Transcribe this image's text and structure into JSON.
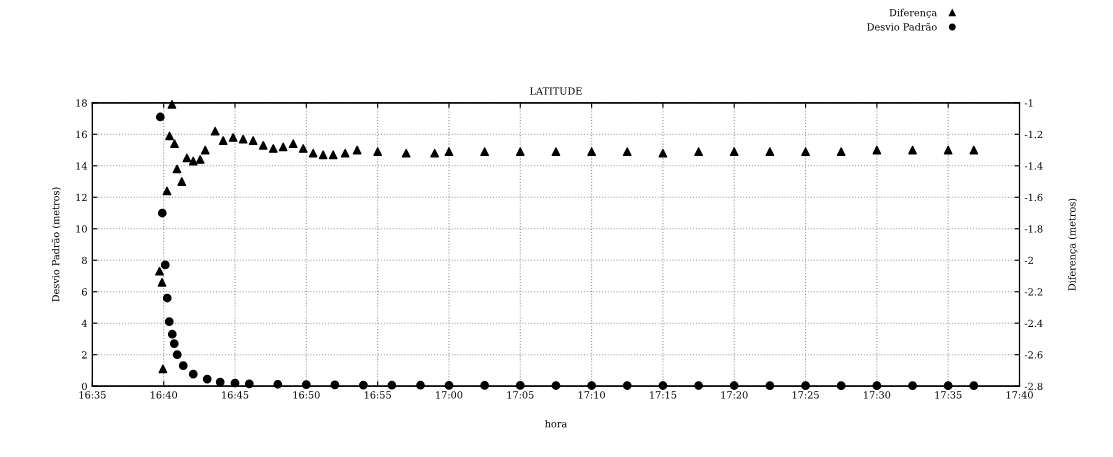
{
  "chart_data": {
    "type": "scatter",
    "title": "LATITUDE",
    "xlabel": "hora",
    "ylabel": "Desvio Padrão (metros)",
    "y2label": "Diferença (metros)",
    "xlim": [
      16.583333,
      17.666667
    ],
    "xticks": [
      {
        "value": 16.583333,
        "label": "16:35"
      },
      {
        "value": 16.666667,
        "label": "16:40"
      },
      {
        "value": 16.75,
        "label": "16:45"
      },
      {
        "value": 16.833333,
        "label": "16:50"
      },
      {
        "value": 16.916667,
        "label": "16:55"
      },
      {
        "value": 17.0,
        "label": "17:00"
      },
      {
        "value": 17.083333,
        "label": "17:05"
      },
      {
        "value": 17.166667,
        "label": "17:10"
      },
      {
        "value": 17.25,
        "label": "17:15"
      },
      {
        "value": 17.333333,
        "label": "17:20"
      },
      {
        "value": 17.416667,
        "label": "17:25"
      },
      {
        "value": 17.5,
        "label": "17:30"
      },
      {
        "value": 17.583333,
        "label": "17:35"
      },
      {
        "value": 17.666667,
        "label": "17:40"
      }
    ],
    "ylim": [
      0,
      18
    ],
    "yticks": [
      0,
      2,
      4,
      6,
      8,
      10,
      12,
      14,
      16,
      18
    ],
    "y2lim": [
      -2.8,
      -1
    ],
    "y2ticks": [
      -2.8,
      -2.6,
      -2.4,
      -2.2,
      -2,
      -1.8,
      -1.6,
      -1.4,
      -1.2,
      -1
    ],
    "grid": true,
    "legend": "top right",
    "series": [
      {
        "name": "Diferença",
        "color": "#000000",
        "axis": "y2",
        "marker": "triangle",
        "x": [
          16.6618,
          16.6647,
          16.6658,
          16.6705,
          16.6735,
          16.6763,
          16.6793,
          16.6822,
          16.6878,
          16.6938,
          16.7012,
          16.7093,
          16.7152,
          16.7268,
          16.7362,
          16.7478,
          16.7595,
          16.7712,
          16.783,
          16.7947,
          16.8063,
          16.818,
          16.8297,
          16.8413,
          16.853,
          16.8647,
          16.8787,
          16.8927,
          16.9167,
          16.95,
          16.9833,
          17.0,
          17.0417,
          17.0833,
          17.125,
          17.1667,
          17.2083,
          17.25,
          17.2917,
          17.3333,
          17.375,
          17.4167,
          17.4583,
          17.5,
          17.5417,
          17.5833,
          17.6133
        ],
        "values": [
          -2.07,
          -2.14,
          -2.69,
          -1.56,
          -1.21,
          -1.01,
          -1.26,
          -1.42,
          -1.5,
          -1.35,
          -1.37,
          -1.36,
          -1.3,
          -1.18,
          -1.24,
          -1.22,
          -1.23,
          -1.24,
          -1.27,
          -1.29,
          -1.28,
          -1.26,
          -1.29,
          -1.32,
          -1.33,
          -1.33,
          -1.32,
          -1.3,
          -1.31,
          -1.32,
          -1.32,
          -1.31,
          -1.31,
          -1.31,
          -1.31,
          -1.31,
          -1.31,
          -1.32,
          -1.31,
          -1.31,
          -1.31,
          -1.31,
          -1.31,
          -1.3,
          -1.3,
          -1.3,
          -1.3
        ]
      },
      {
        "name": "Desvio Padrão",
        "color": "#000000",
        "marker": "circle",
        "x": [
          16.6627,
          16.665,
          16.6685,
          16.6708,
          16.6732,
          16.6767,
          16.679,
          16.6825,
          16.6895,
          16.7012,
          16.7175,
          16.7327,
          16.75,
          16.7667,
          16.8,
          16.8333,
          16.8667,
          16.9,
          16.9333,
          16.9667,
          17.0,
          17.0417,
          17.0833,
          17.125,
          17.1667,
          17.2083,
          17.25,
          17.2917,
          17.3333,
          17.375,
          17.4167,
          17.4583,
          17.5,
          17.5417,
          17.5833,
          17.6133
        ],
        "values": [
          17.1,
          11.0,
          7.7,
          5.6,
          4.1,
          3.3,
          2.7,
          2.0,
          1.3,
          0.77,
          0.45,
          0.26,
          0.2,
          0.15,
          0.12,
          0.1,
          0.08,
          0.07,
          0.06,
          0.06,
          0.05,
          0.05,
          0.05,
          0.04,
          0.04,
          0.04,
          0.04,
          0.04,
          0.04,
          0.03,
          0.03,
          0.03,
          0.03,
          0.03,
          0.03,
          0.03
        ]
      }
    ]
  }
}
